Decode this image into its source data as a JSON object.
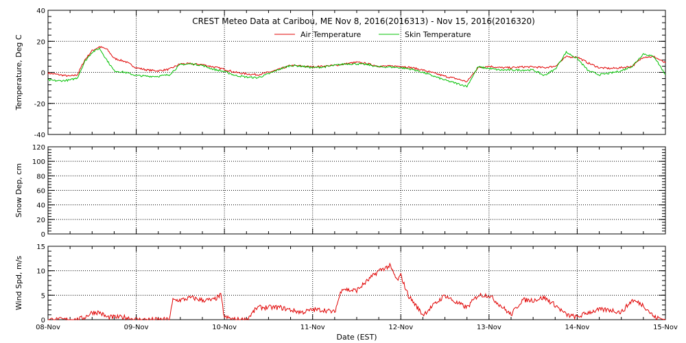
{
  "title": "CREST Meteo Data at Caribou, ME   Nov  8, 2016(2016313) - Nov 15, 2016(2016320)",
  "xlabel": "Date (EST)",
  "x_tick_labels": [
    "08-Nov",
    "09-Nov",
    "10-Nov",
    "11-Nov",
    "12-Nov",
    "13-Nov",
    "14-Nov",
    "15-Nov"
  ],
  "colors": {
    "air": "#e00000",
    "skin": "#00c000",
    "wind": "#e00000",
    "grid": "#000000",
    "frame": "#000000"
  },
  "chart_data": [
    {
      "type": "line",
      "ylabel": "Temperature, Deg C",
      "ylim": [
        -40,
        40
      ],
      "yticks": [
        -40,
        -20,
        0,
        20,
        40
      ],
      "xlim": [
        "2016-11-08",
        "2016-11-15"
      ],
      "grid": true,
      "legend": "top-center",
      "series": [
        {
          "name": "Air Temperature",
          "x": [
            "2016-11-08T00:00",
            "2016-11-08T03:00",
            "2016-11-08T06:00",
            "2016-11-08T08:00",
            "2016-11-08T10:00",
            "2016-11-08T12:00",
            "2016-11-08T14:00",
            "2016-11-08T16:00",
            "2016-11-08T18:00",
            "2016-11-08T21:00",
            "2016-11-09T00:00",
            "2016-11-09T03:00",
            "2016-11-09T06:00",
            "2016-11-09T09:00",
            "2016-11-09T12:00",
            "2016-11-09T15:00",
            "2016-11-09T18:00",
            "2016-11-09T21:00",
            "2016-11-10T00:00",
            "2016-11-10T03:00",
            "2016-11-10T06:00",
            "2016-11-10T09:00",
            "2016-11-10T12:00",
            "2016-11-10T15:00",
            "2016-11-10T18:00",
            "2016-11-10T21:00",
            "2016-11-11T00:00",
            "2016-11-11T03:00",
            "2016-11-11T06:00",
            "2016-11-11T09:00",
            "2016-11-11T12:00",
            "2016-11-11T15:00",
            "2016-11-11T18:00",
            "2016-11-11T21:00",
            "2016-11-12T00:00",
            "2016-11-12T03:00",
            "2016-11-12T06:00",
            "2016-11-12T09:00",
            "2016-11-12T12:00",
            "2016-11-12T15:00",
            "2016-11-12T18:00",
            "2016-11-12T21:00",
            "2016-11-13T00:00",
            "2016-11-13T03:00",
            "2016-11-13T06:00",
            "2016-11-13T09:00",
            "2016-11-13T12:00",
            "2016-11-13T15:00",
            "2016-11-13T18:00",
            "2016-11-13T21:00",
            "2016-11-14T00:00",
            "2016-11-14T03:00",
            "2016-11-14T06:00",
            "2016-11-14T09:00",
            "2016-11-14T12:00",
            "2016-11-14T15:00",
            "2016-11-14T18:00",
            "2016-11-14T21:00",
            "2016-11-15T00:00"
          ],
          "y": [
            -0.5,
            -1.5,
            -2.5,
            -1.5,
            8,
            14,
            16.5,
            15,
            9,
            7,
            3,
            1.5,
            1,
            2,
            5.5,
            5.5,
            5,
            3.5,
            2,
            0,
            -1,
            -1.5,
            0,
            2,
            4.5,
            4,
            3.5,
            4,
            4.5,
            5.5,
            6.5,
            5.5,
            4,
            4,
            4,
            3,
            1.5,
            -0.5,
            -2.5,
            -4,
            -6,
            3,
            4,
            3,
            3,
            3.5,
            3.5,
            3,
            4,
            10,
            10,
            6,
            3,
            2.5,
            3,
            4,
            10,
            10,
            6
          ]
        },
        {
          "name": "Skin Temperature",
          "x": [
            "2016-11-08T00:00",
            "2016-11-08T03:00",
            "2016-11-08T06:00",
            "2016-11-08T08:00",
            "2016-11-08T10:00",
            "2016-11-08T12:00",
            "2016-11-08T14:00",
            "2016-11-08T16:00",
            "2016-11-08T18:00",
            "2016-11-08T21:00",
            "2016-11-09T00:00",
            "2016-11-09T03:00",
            "2016-11-09T06:00",
            "2016-11-09T09:00",
            "2016-11-09T12:00",
            "2016-11-09T15:00",
            "2016-11-09T18:00",
            "2016-11-09T21:00",
            "2016-11-10T00:00",
            "2016-11-10T03:00",
            "2016-11-10T06:00",
            "2016-11-10T09:00",
            "2016-11-10T12:00",
            "2016-11-10T15:00",
            "2016-11-10T18:00",
            "2016-11-10T21:00",
            "2016-11-11T00:00",
            "2016-11-11T03:00",
            "2016-11-11T06:00",
            "2016-11-11T09:00",
            "2016-11-11T12:00",
            "2016-11-11T15:00",
            "2016-11-11T18:00",
            "2016-11-11T21:00",
            "2016-11-12T00:00",
            "2016-11-12T03:00",
            "2016-11-12T06:00",
            "2016-11-12T09:00",
            "2016-11-12T12:00",
            "2016-11-12T15:00",
            "2016-11-12T18:00",
            "2016-11-12T21:00",
            "2016-11-13T00:00",
            "2016-11-13T03:00",
            "2016-11-13T06:00",
            "2016-11-13T09:00",
            "2016-11-13T12:00",
            "2016-11-13T15:00",
            "2016-11-13T18:00",
            "2016-11-13T21:00",
            "2016-11-14T00:00",
            "2016-11-14T03:00",
            "2016-11-14T06:00",
            "2016-11-14T09:00",
            "2016-11-14T12:00",
            "2016-11-14T15:00",
            "2016-11-14T18:00",
            "2016-11-14T21:00",
            "2016-11-15T00:00"
          ],
          "y": [
            -5,
            -5.5,
            -5,
            -3.5,
            7,
            13,
            15.5,
            8,
            1,
            0,
            -2,
            -2.5,
            -2.5,
            -1.5,
            5,
            5.5,
            4.5,
            2,
            0.5,
            -2,
            -3,
            -3.5,
            -1,
            2,
            4.5,
            4,
            3,
            3.5,
            4.5,
            5.5,
            5.5,
            5,
            3.5,
            3.5,
            3,
            2,
            0,
            -2.5,
            -5,
            -7,
            -9,
            3.5,
            2.5,
            1.5,
            1.5,
            1.5,
            1.5,
            -2,
            2,
            13,
            9,
            1,
            -1.5,
            -0.5,
            1,
            4,
            12,
            10,
            -1.5
          ]
        }
      ]
    },
    {
      "type": "line",
      "ylabel": "Snow Dep, cm",
      "ylim": [
        0,
        120
      ],
      "yticks": [
        0,
        20,
        40,
        60,
        80,
        100,
        120
      ],
      "xlim": [
        "2016-11-08",
        "2016-11-15"
      ],
      "grid": true,
      "series": []
    },
    {
      "type": "line",
      "ylabel": "Wind Spd, m/s",
      "ylim": [
        0,
        15
      ],
      "yticks": [
        0,
        5,
        10,
        15
      ],
      "xlim": [
        "2016-11-08",
        "2016-11-15"
      ],
      "grid": true,
      "series": [
        {
          "x": [
            "2016-11-08T00:00",
            "2016-11-08T03:00",
            "2016-11-08T06:00",
            "2016-11-08T08:00",
            "2016-11-08T10:00",
            "2016-11-08T12:00",
            "2016-11-08T14:00",
            "2016-11-08T16:00",
            "2016-11-08T18:00",
            "2016-11-08T21:00",
            "2016-11-09T00:00",
            "2016-11-09T03:00",
            "2016-11-09T06:00",
            "2016-11-09T09:00",
            "2016-11-09T10:00",
            "2016-11-09T12:00",
            "2016-11-09T15:00",
            "2016-11-09T18:00",
            "2016-11-09T21:00",
            "2016-11-09T23:00",
            "2016-11-10T00:00",
            "2016-11-10T03:00",
            "2016-11-10T06:00",
            "2016-11-10T09:00",
            "2016-11-10T12:00",
            "2016-11-10T15:00",
            "2016-11-10T18:00",
            "2016-11-10T21:00",
            "2016-11-11T00:00",
            "2016-11-11T03:00",
            "2016-11-11T06:00",
            "2016-11-11T08:00",
            "2016-11-11T10:00",
            "2016-11-11T12:00",
            "2016-11-11T15:00",
            "2016-11-11T18:00",
            "2016-11-11T21:00",
            "2016-11-11T23:00",
            "2016-11-12T00:00",
            "2016-11-12T02:00",
            "2016-11-12T04:00",
            "2016-11-12T06:00",
            "2016-11-12T09:00",
            "2016-11-12T12:00",
            "2016-11-12T15:00",
            "2016-11-12T18:00",
            "2016-11-12T21:00",
            "2016-11-13T00:00",
            "2016-11-13T03:00",
            "2016-11-13T06:00",
            "2016-11-13T09:00",
            "2016-11-13T12:00",
            "2016-11-13T15:00",
            "2016-11-13T18:00",
            "2016-11-13T21:00",
            "2016-11-14T00:00",
            "2016-11-14T03:00",
            "2016-11-14T06:00",
            "2016-11-14T09:00",
            "2016-11-14T12:00",
            "2016-11-14T15:00",
            "2016-11-14T18:00",
            "2016-11-14T21:00",
            "2016-11-15T00:00"
          ],
          "y": [
            0,
            0,
            0,
            0,
            0.5,
            1.5,
            1.5,
            0.5,
            0.5,
            0.5,
            0,
            0,
            0,
            0,
            4,
            4,
            4.5,
            4,
            4,
            5,
            0.5,
            0,
            0,
            2.5,
            2.5,
            2.5,
            2,
            1.5,
            2,
            2,
            1.5,
            6.5,
            6,
            6,
            8,
            10,
            11,
            8,
            9,
            5,
            3,
            1,
            3,
            5,
            3.5,
            2.5,
            5,
            5,
            3,
            1,
            4,
            4,
            4.5,
            3,
            1,
            0.5,
            1.5,
            2,
            2,
            1.5,
            4,
            3,
            0.5,
            0
          ]
        }
      ]
    }
  ]
}
